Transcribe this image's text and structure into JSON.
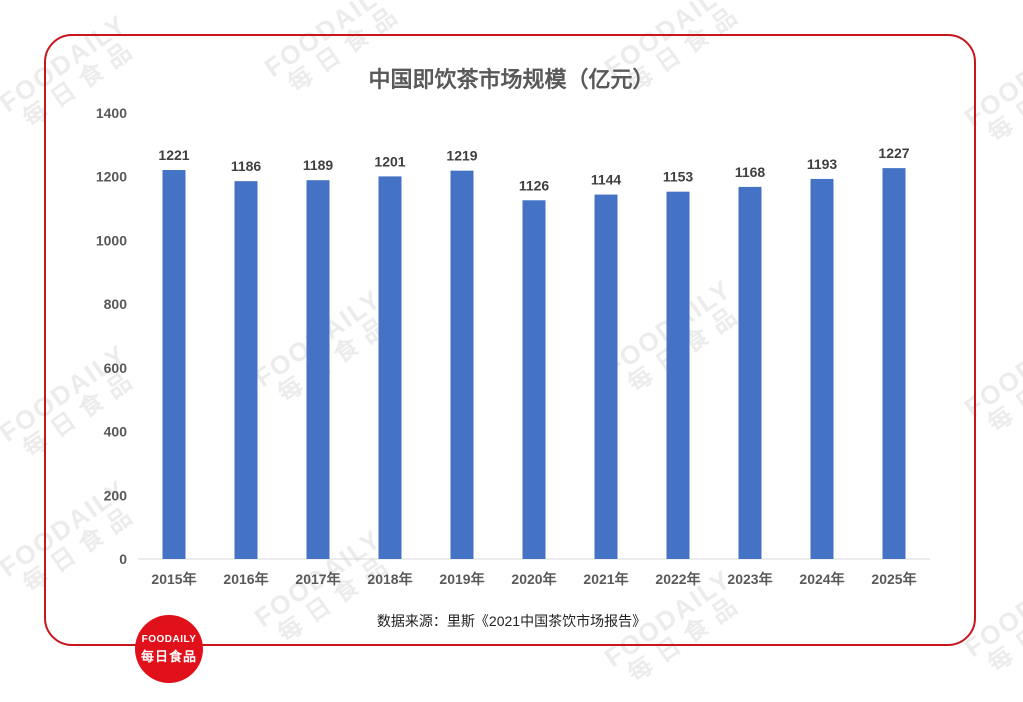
{
  "watermark": {
    "en": "FOODAILY",
    "cn": "每日食品"
  },
  "logo": {
    "en": "FOODAILY",
    "cn": "每日食品"
  },
  "source": "数据来源：里斯《2021中国茶饮市场报告》",
  "colors": {
    "bar": "#4472c4",
    "frame": "#c8161d",
    "logo_bg": "#e0111b",
    "text": "#595959",
    "axis": "#d9d9d9"
  },
  "chart_data": {
    "type": "bar",
    "title": "中国即饮茶市场规模（亿元）",
    "categories": [
      "2015年",
      "2016年",
      "2017年",
      "2018年",
      "2019年",
      "2020年",
      "2021年",
      "2022年",
      "2023年",
      "2024年",
      "2025年"
    ],
    "values": [
      1221,
      1186,
      1189,
      1201,
      1219,
      1126,
      1144,
      1153,
      1168,
      1193,
      1227
    ],
    "data_labels": [
      "1221",
      "1186",
      "1189",
      "1201",
      "1219",
      "1126",
      "1144",
      "1153",
      "1168",
      "1193",
      "1227"
    ],
    "yticks": [
      "0",
      "200",
      "400",
      "600",
      "800",
      "1000",
      "1200",
      "1400"
    ],
    "ylim": [
      0,
      1400
    ],
    "xlabel": "",
    "ylabel": "",
    "grid": false,
    "legend": "none"
  }
}
